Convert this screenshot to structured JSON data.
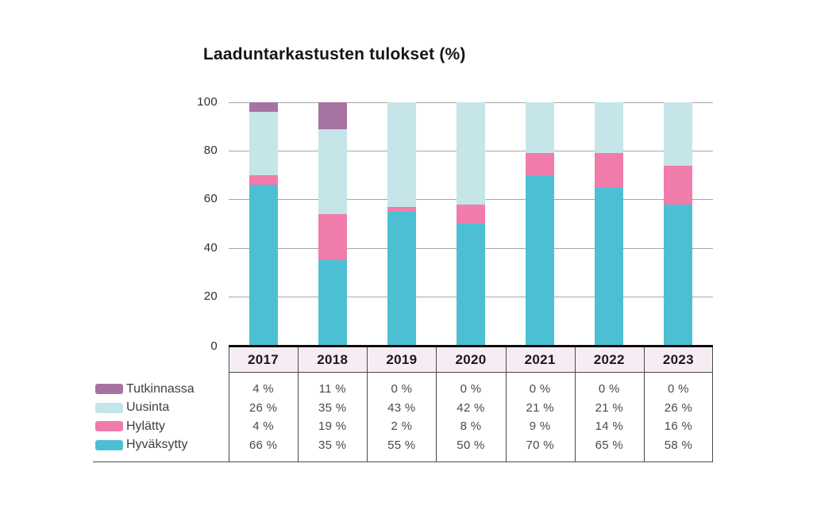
{
  "chart": {
    "title": "Laaduntarkastusten tulokset (%)"
  },
  "chart_data": {
    "type": "bar",
    "stacked": true,
    "title": "Laaduntarkastusten tulokset (%)",
    "xlabel": "",
    "ylabel": "",
    "ylim": [
      0,
      100
    ],
    "yticks": [
      0,
      20,
      40,
      60,
      80,
      100
    ],
    "grid": true,
    "legend_position": "bottom-left",
    "stack_order_bottom_to_top": [
      "Hyväksytty",
      "Hylätty",
      "Uusinta",
      "Tutkinnassa"
    ],
    "categories": [
      "2017",
      "2018",
      "2019",
      "2020",
      "2021",
      "2022",
      "2023"
    ],
    "series": [
      {
        "name": "Tutkinnassa",
        "key": "tutkinnassa",
        "color": "#a672a2",
        "values": [
          4,
          11,
          0,
          0,
          0,
          0,
          0
        ],
        "display": [
          "4 %",
          "11 %",
          "0 %",
          "0 %",
          "0 %",
          "0 %",
          "0 %"
        ]
      },
      {
        "name": "Uusinta",
        "key": "uusinta",
        "color": "#c5e5e9",
        "values": [
          26,
          35,
          43,
          42,
          21,
          21,
          26
        ],
        "display": [
          "26 %",
          "35 %",
          "43 %",
          "42 %",
          "21 %",
          "21 %",
          "26 %"
        ]
      },
      {
        "name": "Hylätty",
        "key": "hylatty",
        "color": "#f07cab",
        "values": [
          4,
          19,
          2,
          8,
          9,
          14,
          16
        ],
        "display": [
          "4 %",
          "19 %",
          "2 %",
          "8 %",
          "9 %",
          "14 %",
          "16 %"
        ]
      },
      {
        "name": "Hyväksytty",
        "key": "hyvaksytty",
        "color": "#4cc0d2",
        "values": [
          66,
          35,
          55,
          50,
          70,
          65,
          58
        ],
        "display": [
          "66 %",
          "35 %",
          "55 %",
          "50 %",
          "70 %",
          "65 %",
          "58 %"
        ]
      }
    ]
  },
  "colors": {
    "header_bg": "#f8ecf4",
    "table_border": "#4a4a4a",
    "gridline": "#a6a6a6",
    "axis_line": "#0d0d0d",
    "background": "#ffffff"
  }
}
